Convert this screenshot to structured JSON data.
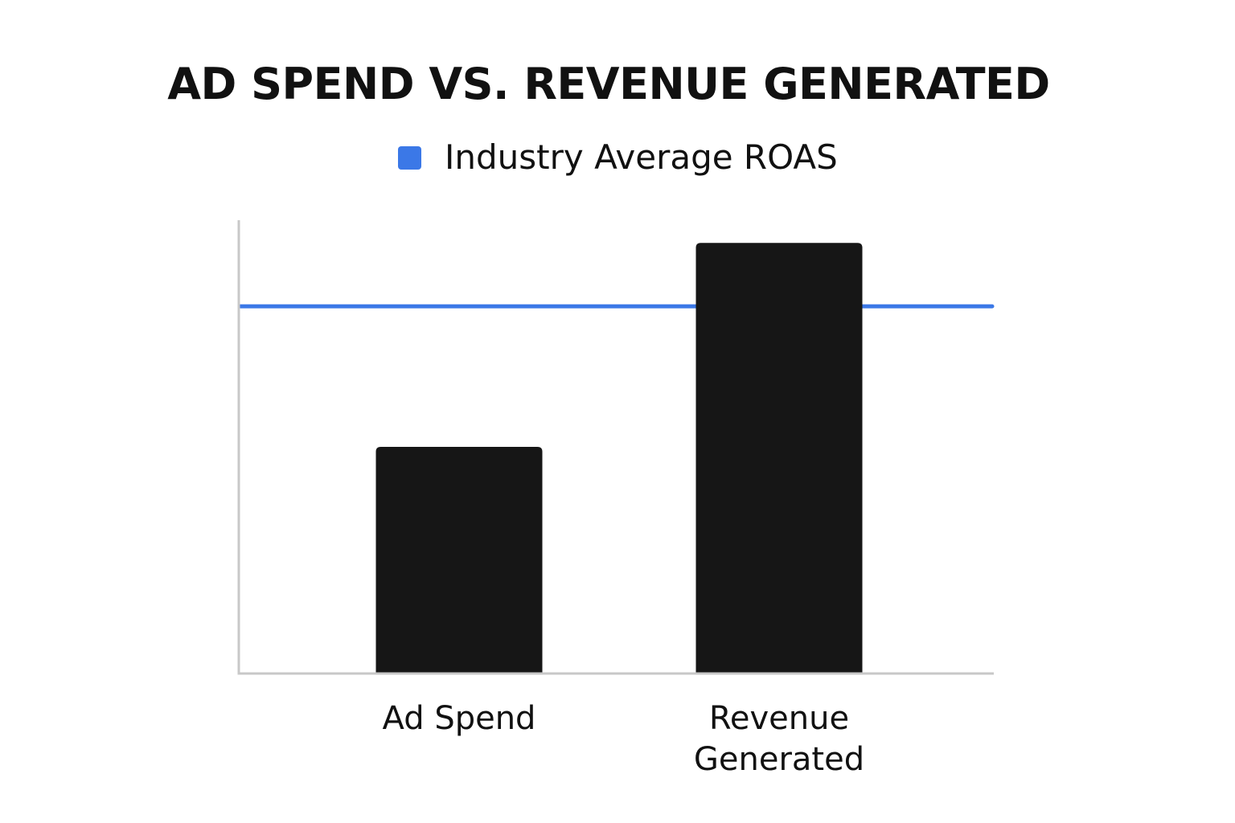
{
  "chart_data": {
    "type": "bar",
    "title": "AD SPEND VS. REVENUE GENERATED",
    "categories": [
      "Ad Spend",
      "Revenue Generated"
    ],
    "category_label_lines": [
      [
        "Ad Spend"
      ],
      [
        "Revenue",
        "Generated"
      ]
    ],
    "values": [
      50,
      95
    ],
    "ylim": [
      0,
      100
    ],
    "xlabel": "",
    "ylabel": "",
    "reference_line": {
      "name": "Industry Average ROAS",
      "value": 81
    },
    "legend": {
      "position": "top-center",
      "entries": [
        "Industry Average ROAS"
      ]
    },
    "grid": false
  },
  "colors": {
    "bar": "#161616",
    "reference_line": "#3b78e7",
    "axis": "#c8c8c8",
    "text": "#111111"
  }
}
